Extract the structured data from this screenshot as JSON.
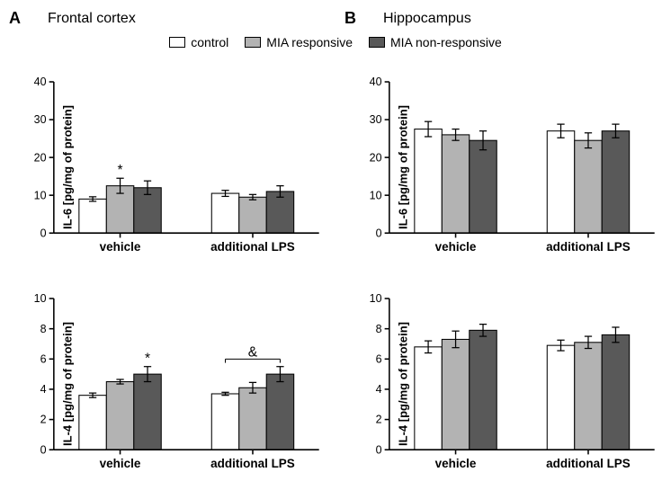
{
  "panels": {
    "A": {
      "label": "A",
      "title": "Frontal cortex"
    },
    "B": {
      "label": "B",
      "title": "Hippocampus"
    }
  },
  "legend": {
    "control": {
      "label": "control",
      "color": "#ffffff"
    },
    "responsive": {
      "label": "MIA responsive",
      "color": "#b3b3b3"
    },
    "nonresponsive": {
      "label": "MIA non-responsive",
      "color": "#595959"
    }
  },
  "chart_style": {
    "axis_color": "#000000",
    "axis_width": 1.5,
    "bar_border": "#000000",
    "bar_border_width": 1,
    "err_color": "#000000",
    "err_width": 1.2,
    "err_cap": 4,
    "tick_len": 5,
    "tick_fontsize": 12,
    "xlabel_fontsize": 13,
    "bar_width": 0.7,
    "sig_fontsize": 15
  },
  "charts": [
    {
      "id": "A_IL6",
      "ylabel": "IL-6 [pg/mg of protein]",
      "ylim": [
        0,
        40
      ],
      "ytick_step": 10,
      "groups": [
        "vehicle",
        "additional LPS"
      ],
      "series": [
        "control",
        "responsive",
        "nonresponsive"
      ],
      "values": [
        [
          9.0,
          12.5,
          12.0
        ],
        [
          10.5,
          9.5,
          11.0
        ]
      ],
      "err": [
        [
          0.6,
          2.0,
          1.8
        ],
        [
          0.8,
          0.7,
          1.5
        ]
      ],
      "sig": [
        {
          "type": "star",
          "group": 0,
          "bar": 1,
          "text": "*"
        }
      ]
    },
    {
      "id": "B_IL6",
      "ylabel": "IL-6 [pg/mg of protein]",
      "ylim": [
        0,
        40
      ],
      "ytick_step": 10,
      "groups": [
        "vehicle",
        "additional LPS"
      ],
      "series": [
        "control",
        "responsive",
        "nonresponsive"
      ],
      "values": [
        [
          27.5,
          26.0,
          24.5
        ],
        [
          27.0,
          24.5,
          27.0
        ]
      ],
      "err": [
        [
          2.0,
          1.5,
          2.5
        ],
        [
          1.8,
          2.0,
          1.8
        ]
      ],
      "sig": []
    },
    {
      "id": "A_IL4",
      "ylabel": "IL-4 [pg/mg of protein]",
      "ylim": [
        0,
        10
      ],
      "ytick_step": 2,
      "groups": [
        "vehicle",
        "additional LPS"
      ],
      "series": [
        "control",
        "responsive",
        "nonresponsive"
      ],
      "values": [
        [
          3.6,
          4.5,
          5.0
        ],
        [
          3.7,
          4.1,
          5.0
        ]
      ],
      "err": [
        [
          0.15,
          0.15,
          0.5
        ],
        [
          0.1,
          0.35,
          0.5
        ]
      ],
      "sig": [
        {
          "type": "star",
          "group": 0,
          "bar": 2,
          "text": "*"
        },
        {
          "type": "bracket",
          "group": 1,
          "from": 0,
          "to": 2,
          "text": "&"
        }
      ]
    },
    {
      "id": "B_IL4",
      "ylabel": "IL-4 [pg/mg of protein]",
      "ylim": [
        0,
        10
      ],
      "ytick_step": 2,
      "groups": [
        "vehicle",
        "additional LPS"
      ],
      "series": [
        "control",
        "responsive",
        "nonresponsive"
      ],
      "values": [
        [
          6.8,
          7.3,
          7.9
        ],
        [
          6.9,
          7.1,
          7.6
        ]
      ],
      "err": [
        [
          0.4,
          0.55,
          0.4
        ],
        [
          0.35,
          0.4,
          0.5
        ]
      ],
      "sig": []
    }
  ]
}
